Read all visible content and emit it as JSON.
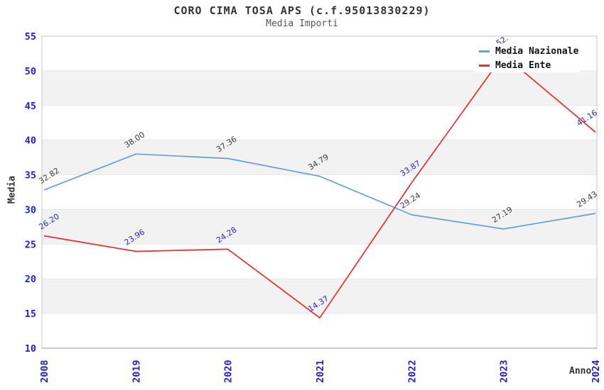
{
  "header": {
    "title": "CORO CIMA TOSA APS (c.f.95013830229)",
    "subtitle": "Media Importi"
  },
  "legend": {
    "items": [
      {
        "label": "Media Nazionale",
        "color": "#63a0d8"
      },
      {
        "label": "Media Ente",
        "color": "#e62e2e"
      }
    ]
  },
  "axes": {
    "x_title": "Anno",
    "y_title": "Media",
    "tick_label_color": "#2222cc",
    "axis_title_color": "#333333"
  },
  "chart_data": {
    "type": "line",
    "title": "CORO CIMA TOSA APS (c.f.95013830229)",
    "subtitle": "Media Importi",
    "xlabel": "Anno",
    "ylabel": "Media",
    "categories": [
      "2008",
      "2019",
      "2020",
      "2021",
      "2022",
      "2023",
      "2024"
    ],
    "y_ticks": [
      55,
      50,
      45,
      40,
      35,
      30,
      25,
      20,
      15,
      10
    ],
    "ylim": [
      10,
      55
    ],
    "grid": "alternating horizontal bands (gray between 50-45, 40-35, 30-25, 20-15)",
    "band_color": "#f2f2f2",
    "legend_position": "top-right-inside",
    "series": [
      {
        "name": "Media Nazionale",
        "color": "#63a0d8",
        "label_color": "#3c3c3c",
        "values": [
          32.82,
          38.0,
          37.36,
          34.79,
          29.24,
          27.19,
          29.43
        ],
        "labels": [
          "32.82",
          "38.00",
          "37.36",
          "34.79",
          "29.24",
          "27.19",
          "29.43"
        ]
      },
      {
        "name": "Media Ente",
        "color": "#e62e2e",
        "label_color": "#2a2ab2",
        "values": [
          26.2,
          23.96,
          24.28,
          14.37,
          33.87,
          52.3,
          41.16
        ],
        "labels": [
          "26.20",
          "23.96",
          "24.28",
          "14.37",
          "33.87",
          "52.",
          "41.16"
        ],
        "note_2023": "label partially hidden behind legend box; only '52.' visible"
      }
    ]
  }
}
